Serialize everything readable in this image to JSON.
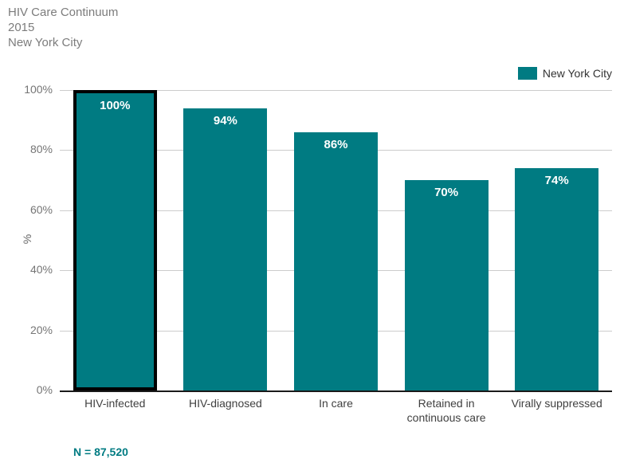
{
  "chart_data": {
    "type": "bar",
    "title": "HIV Care Continuum",
    "subtitle": "2015",
    "location": "New York City",
    "categories": [
      "HIV-infected",
      "HIV-diagnosed",
      "In care",
      "Retained in continuous care",
      "Virally suppressed"
    ],
    "values": [
      100,
      94,
      86,
      70,
      74
    ],
    "value_labels": [
      "100%",
      "94%",
      "86%",
      "70%",
      "74%"
    ],
    "ylabel": "%",
    "ylim": [
      0,
      100
    ],
    "yticks": [
      0,
      20,
      40,
      60,
      80,
      100
    ],
    "ytick_labels": [
      "0%",
      "20%",
      "40%",
      "60%",
      "80%",
      "100%"
    ],
    "grid": "horizontal",
    "legend": {
      "position": "top-right",
      "entries": [
        "New York City"
      ]
    },
    "highlighted_category": "HIV-infected",
    "note": "N = 87,520",
    "colors": {
      "bar": "#007B82",
      "highlight_border": "#000000",
      "gridline": "#cccccc",
      "axis": "#1a1a1a",
      "title_text": "#7c7c7c",
      "tick_text": "#757575",
      "bar_label_text": "#ffffff"
    }
  }
}
